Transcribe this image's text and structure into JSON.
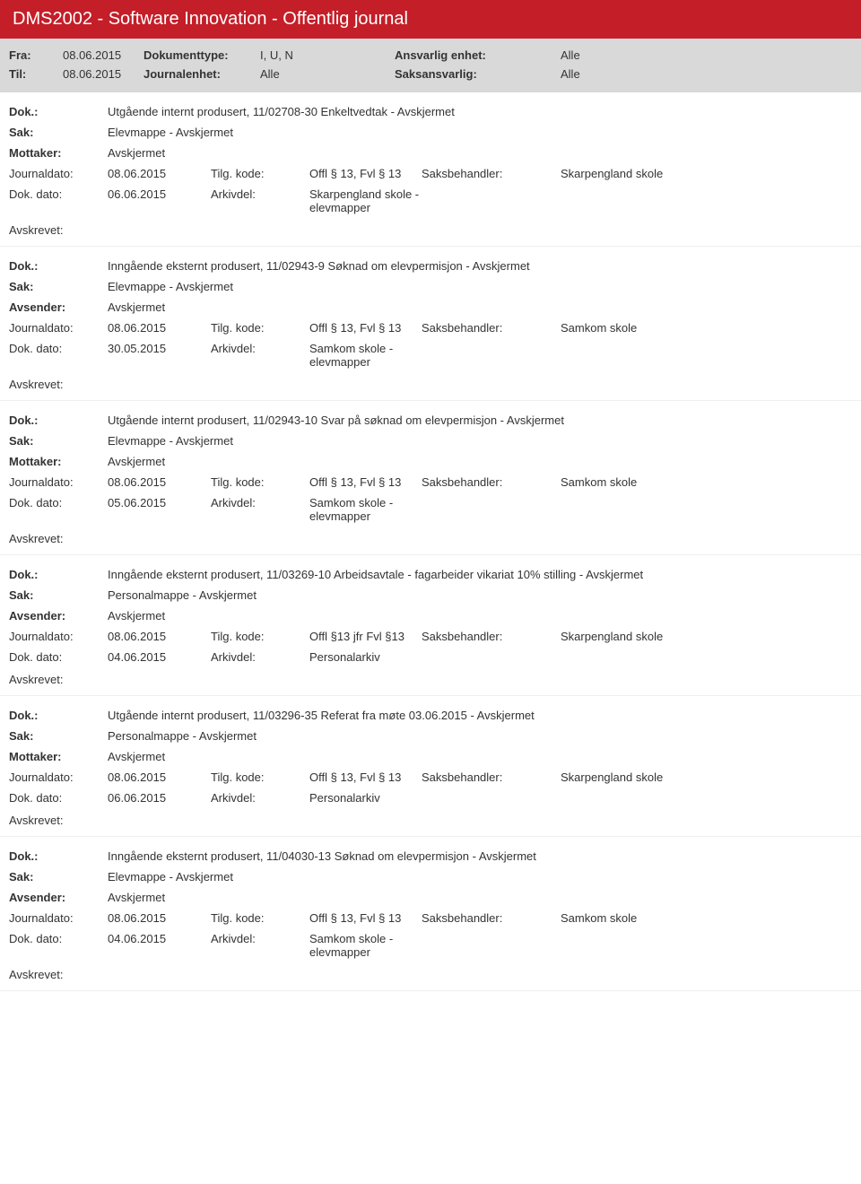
{
  "header": {
    "title": "DMS2002 - Software Innovation - Offentlig journal"
  },
  "filter": {
    "fra_label": "Fra:",
    "fra_val": "08.06.2015",
    "til_label": "Til:",
    "til_val": "08.06.2015",
    "doktype_label": "Dokumenttype:",
    "doktype_val": "I, U, N",
    "journalenhet_label": "Journalenhet:",
    "journalenhet_val": "Alle",
    "ansvarlig_label": "Ansvarlig enhet:",
    "ansvarlig_val": "Alle",
    "saksansvarlig_label": "Saksansvarlig:",
    "saksansvarlig_val": "Alle"
  },
  "labels": {
    "dok": "Dok.:",
    "sak": "Sak:",
    "mottaker": "Mottaker:",
    "avsender": "Avsender:",
    "journaldato": "Journaldato:",
    "dokdato": "Dok. dato:",
    "tilgkode": "Tilg. kode:",
    "arkivdel": "Arkivdel:",
    "saksbehandler": "Saksbehandler:",
    "avskrevet": "Avskrevet:"
  },
  "entries": [
    {
      "dok": "Utgående internt produsert, 11/02708-30 Enkeltvedtak - Avskjermet",
      "sak": "Elevmappe - Avskjermet",
      "party_label": "Mottaker:",
      "party": "Avskjermet",
      "journaldato": "08.06.2015",
      "tilgkode": "Offl § 13, Fvl § 13",
      "saksbehandler_label": "Saksbehandler:",
      "saksbehandler": "Skarpengland skole",
      "dokdato": "06.06.2015",
      "arkivdel": "Skarpengland skole - elevmapper"
    },
    {
      "dok": "Inngående eksternt produsert, 11/02943-9 Søknad om elevpermisjon - Avskjermet",
      "sak": "Elevmappe - Avskjermet",
      "party_label": "Avsender:",
      "party": "Avskjermet",
      "journaldato": "08.06.2015",
      "tilgkode": "Offl § 13, Fvl § 13",
      "saksbehandler_label": "Saksbehandler:",
      "saksbehandler": "Samkom skole",
      "dokdato": "30.05.2015",
      "arkivdel": "Samkom skole - elevmapper"
    },
    {
      "dok": "Utgående internt produsert, 11/02943-10 Svar på søknad om elevpermisjon - Avskjermet",
      "sak": "Elevmappe - Avskjermet",
      "party_label": "Mottaker:",
      "party": "Avskjermet",
      "journaldato": "08.06.2015",
      "tilgkode": "Offl § 13, Fvl § 13",
      "saksbehandler_label": "Saksbehandler:",
      "saksbehandler": "Samkom skole",
      "dokdato": "05.06.2015",
      "arkivdel": "Samkom skole - elevmapper"
    },
    {
      "dok": "Inngående eksternt produsert, 11/03269-10 Arbeidsavtale - fagarbeider vikariat 10% stilling - Avskjermet",
      "sak": "Personalmappe - Avskjermet",
      "party_label": "Avsender:",
      "party": "Avskjermet",
      "journaldato": "08.06.2015",
      "tilgkode": "Offl §13 jfr Fvl §13",
      "saksbehandler_label": "Saksbehandler:",
      "saksbehandler": "Skarpengland skole",
      "dokdato": "04.06.2015",
      "arkivdel": "Personalarkiv"
    },
    {
      "dok": "Utgående internt produsert, 11/03296-35 Referat fra møte 03.06.2015 - Avskjermet",
      "sak": "Personalmappe - Avskjermet",
      "party_label": "Mottaker:",
      "party": "Avskjermet",
      "journaldato": "08.06.2015",
      "tilgkode": "Offl § 13, Fvl § 13",
      "saksbehandler_label": "Saksbehandler:",
      "saksbehandler": "Skarpengland skole",
      "dokdato": "06.06.2015",
      "arkivdel": "Personalarkiv"
    },
    {
      "dok": "Inngående eksternt produsert, 11/04030-13 Søknad om elevpermisjon - Avskjermet",
      "sak": "Elevmappe - Avskjermet",
      "party_label": "Avsender:",
      "party": "Avskjermet",
      "journaldato": "08.06.2015",
      "tilgkode": "Offl § 13, Fvl § 13",
      "saksbehandler_label": "Saksbehandler:",
      "saksbehandler": "Samkom skole",
      "dokdato": "04.06.2015",
      "arkivdel": "Samkom skole - elevmapper"
    }
  ]
}
